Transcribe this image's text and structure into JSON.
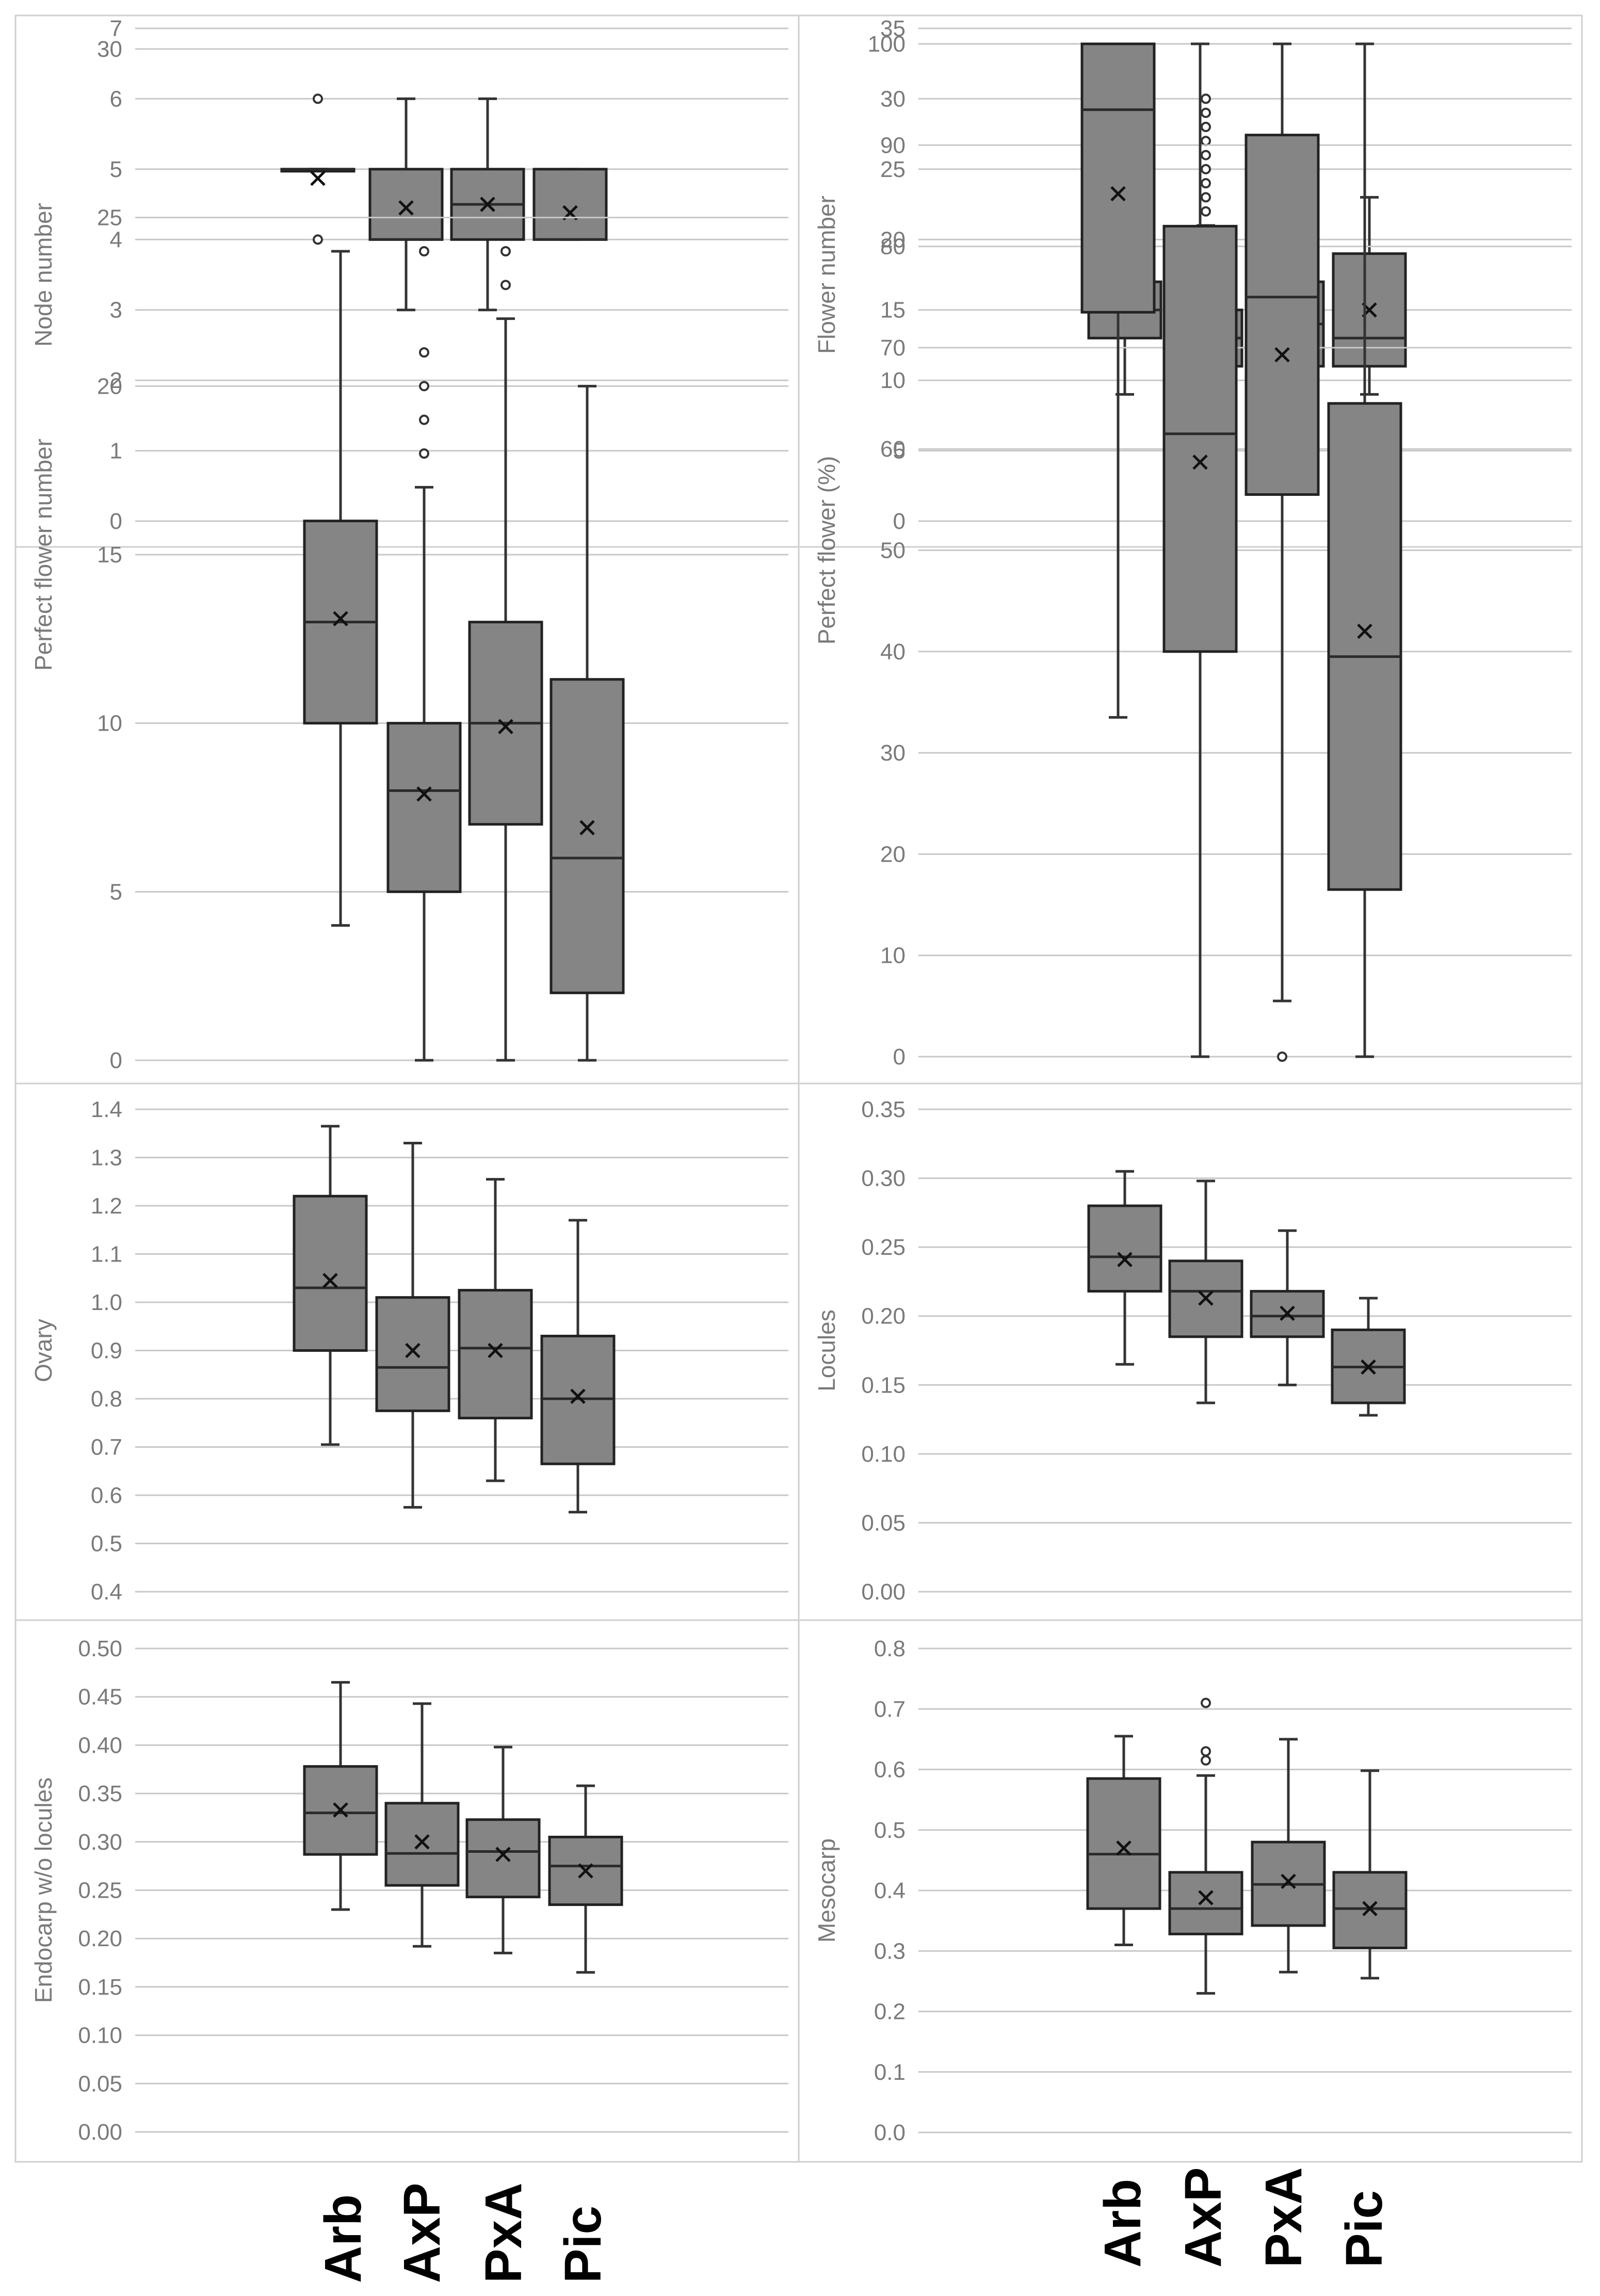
{
  "figure": {
    "categories": [
      "Arb",
      "AxP",
      "PxA",
      "Pic"
    ]
  },
  "chart_data": [
    {
      "type": "box",
      "title": "",
      "xlabel": "",
      "ylabel": "Node number",
      "ylim": [
        0,
        7
      ],
      "yticks": [
        0,
        1,
        2,
        3,
        4,
        5,
        6,
        7
      ],
      "tick_decimals": 0,
      "categories": [
        "Arb",
        "AxP",
        "PxA",
        "Pic"
      ],
      "series": [
        {
          "name": "Arb",
          "min": 5,
          "q1": 5,
          "median": 5,
          "q3": 5,
          "max": 5,
          "mean": 4.87,
          "outliers": [
            4,
            6
          ]
        },
        {
          "name": "AxP",
          "min": 3,
          "q1": 4,
          "median": 4,
          "q3": 5,
          "max": 6,
          "mean": 4.45,
          "outliers": []
        },
        {
          "name": "PxA",
          "min": 3,
          "q1": 4,
          "median": 4.5,
          "q3": 5,
          "max": 6,
          "mean": 4.5,
          "outliers": []
        },
        {
          "name": "Pic",
          "min": 4,
          "q1": 4,
          "median": 4,
          "q3": 5,
          "max": 5,
          "mean": 4.38,
          "outliers": []
        }
      ]
    },
    {
      "type": "box",
      "title": "",
      "xlabel": "",
      "ylabel": "Flower number",
      "ylim": [
        0,
        35
      ],
      "yticks": [
        0,
        5,
        10,
        15,
        20,
        25,
        30,
        35
      ],
      "tick_decimals": 0,
      "categories": [
        "Arb",
        "AxP",
        "PxA",
        "Pic"
      ],
      "series": [
        {
          "name": "Arb",
          "min": 9,
          "q1": 13,
          "median": 15,
          "q3": 17,
          "max": 22,
          "mean": 15.3,
          "outliers": [
            25,
            29
          ]
        },
        {
          "name": "AxP",
          "min": 7,
          "q1": 11,
          "median": 13,
          "q3": 15,
          "max": 21,
          "mean": 13.1,
          "outliers": [
            22,
            23,
            24,
            25,
            26,
            27,
            28,
            29,
            30
          ]
        },
        {
          "name": "PxA",
          "min": 7,
          "q1": 11,
          "median": 14,
          "q3": 17,
          "max": 26,
          "mean": 14.3,
          "outliers": [
            27
          ]
        },
        {
          "name": "Pic",
          "min": 9,
          "q1": 11,
          "median": 13,
          "q3": 19,
          "max": 23,
          "mean": 15.0,
          "outliers": []
        }
      ]
    },
    {
      "type": "box",
      "title": "",
      "xlabel": "",
      "ylabel": "Perfect flower number",
      "ylim": [
        0,
        30
      ],
      "yticks": [
        0,
        5,
        10,
        15,
        20,
        25,
        30
      ],
      "tick_decimals": 0,
      "categories": [
        "Arb",
        "AxP",
        "PxA",
        "Pic"
      ],
      "series": [
        {
          "name": "Arb",
          "min": 4,
          "q1": 10,
          "median": 13,
          "q3": 16,
          "max": 24,
          "mean": 13.1,
          "outliers": []
        },
        {
          "name": "AxP",
          "min": 0,
          "q1": 5,
          "median": 8,
          "q3": 10,
          "max": 17,
          "mean": 7.9,
          "outliers": [
            18,
            19,
            20,
            21,
            24
          ]
        },
        {
          "name": "PxA",
          "min": 0,
          "q1": 7,
          "median": 10,
          "q3": 13,
          "max": 22,
          "mean": 9.9,
          "outliers": [
            23,
            24
          ]
        },
        {
          "name": "Pic",
          "min": 0,
          "q1": 2,
          "median": 6,
          "q3": 11.3,
          "max": 20,
          "mean": 6.9,
          "outliers": []
        }
      ]
    },
    {
      "type": "box",
      "title": "",
      "xlabel": "",
      "ylabel": "Perfect flower (%)",
      "ylim": [
        0,
        100
      ],
      "yticks": [
        0,
        10,
        20,
        30,
        40,
        50,
        60,
        70,
        80,
        90,
        100
      ],
      "tick_decimals": 0,
      "categories": [
        "Arb",
        "AxP",
        "PxA",
        "Pic"
      ],
      "series": [
        {
          "name": "Arb",
          "min": 33.5,
          "q1": 73.5,
          "median": 93.5,
          "q3": 100,
          "max": 100,
          "mean": 85.2,
          "outliers": []
        },
        {
          "name": "AxP",
          "min": 0,
          "q1": 40,
          "median": 61.5,
          "q3": 82,
          "max": 100,
          "mean": 58.7,
          "outliers": []
        },
        {
          "name": "PxA",
          "min": 5.5,
          "q1": 55.5,
          "median": 75,
          "q3": 91,
          "max": 100,
          "mean": 69.3,
          "outliers": [
            0
          ]
        },
        {
          "name": "Pic",
          "min": 0,
          "q1": 16.5,
          "median": 39.5,
          "q3": 64.5,
          "max": 100,
          "mean": 42.0,
          "outliers": []
        }
      ]
    },
    {
      "type": "box",
      "title": "",
      "xlabel": "",
      "ylabel": "Ovary",
      "ylim": [
        0.4,
        1.4
      ],
      "yticks": [
        0.4,
        0.5,
        0.6,
        0.7,
        0.8,
        0.9,
        1.0,
        1.1,
        1.2,
        1.3,
        1.4
      ],
      "tick_decimals": 1,
      "categories": [
        "Arb",
        "AxP",
        "PxA",
        "Pic"
      ],
      "series": [
        {
          "name": "Arb",
          "min": 0.705,
          "q1": 0.9,
          "median": 1.03,
          "q3": 1.22,
          "max": 1.365,
          "mean": 1.045,
          "outliers": []
        },
        {
          "name": "AxP",
          "min": 0.575,
          "q1": 0.775,
          "median": 0.865,
          "q3": 1.01,
          "max": 1.33,
          "mean": 0.9,
          "outliers": []
        },
        {
          "name": "PxA",
          "min": 0.63,
          "q1": 0.76,
          "median": 0.905,
          "q3": 1.025,
          "max": 1.255,
          "mean": 0.9,
          "outliers": []
        },
        {
          "name": "Pic",
          "min": 0.565,
          "q1": 0.665,
          "median": 0.8,
          "q3": 0.93,
          "max": 1.17,
          "mean": 0.805,
          "outliers": []
        }
      ]
    },
    {
      "type": "box",
      "title": "",
      "xlabel": "",
      "ylabel": "Locules",
      "ylim": [
        0,
        0.35
      ],
      "yticks": [
        0,
        0.05,
        0.1,
        0.15,
        0.2,
        0.25,
        0.3,
        0.35
      ],
      "tick_decimals": 2,
      "categories": [
        "Arb",
        "AxP",
        "PxA",
        "Pic"
      ],
      "series": [
        {
          "name": "Arb",
          "min": 0.165,
          "q1": 0.218,
          "median": 0.243,
          "q3": 0.28,
          "max": 0.305,
          "mean": 0.241,
          "outliers": []
        },
        {
          "name": "AxP",
          "min": 0.137,
          "q1": 0.185,
          "median": 0.218,
          "q3": 0.24,
          "max": 0.298,
          "mean": 0.213,
          "outliers": []
        },
        {
          "name": "PxA",
          "min": 0.15,
          "q1": 0.185,
          "median": 0.2,
          "q3": 0.218,
          "max": 0.262,
          "mean": 0.202,
          "outliers": []
        },
        {
          "name": "Pic",
          "min": 0.128,
          "q1": 0.137,
          "median": 0.163,
          "q3": 0.19,
          "max": 0.213,
          "mean": 0.163,
          "outliers": []
        }
      ]
    },
    {
      "type": "box",
      "title": "",
      "xlabel": "",
      "ylabel": "Endocarp w/o locules",
      "ylim": [
        0,
        0.5
      ],
      "yticks": [
        0,
        0.05,
        0.1,
        0.15,
        0.2,
        0.25,
        0.3,
        0.35,
        0.4,
        0.45,
        0.5
      ],
      "tick_decimals": 2,
      "categories": [
        "Arb",
        "AxP",
        "PxA",
        "Pic"
      ],
      "series": [
        {
          "name": "Arb",
          "min": 0.23,
          "q1": 0.287,
          "median": 0.33,
          "q3": 0.378,
          "max": 0.465,
          "mean": 0.333,
          "outliers": []
        },
        {
          "name": "AxP",
          "min": 0.192,
          "q1": 0.255,
          "median": 0.288,
          "q3": 0.34,
          "max": 0.443,
          "mean": 0.3,
          "outliers": []
        },
        {
          "name": "PxA",
          "min": 0.185,
          "q1": 0.243,
          "median": 0.29,
          "q3": 0.323,
          "max": 0.398,
          "mean": 0.287,
          "outliers": []
        },
        {
          "name": "Pic",
          "min": 0.165,
          "q1": 0.235,
          "median": 0.275,
          "q3": 0.305,
          "max": 0.358,
          "mean": 0.27,
          "outliers": []
        }
      ]
    },
    {
      "type": "box",
      "title": "",
      "xlabel": "",
      "ylabel": "Mesocarp",
      "ylim": [
        0,
        0.8
      ],
      "yticks": [
        0,
        0.1,
        0.2,
        0.3,
        0.4,
        0.5,
        0.6,
        0.7,
        0.8
      ],
      "tick_decimals": 1,
      "categories": [
        "Arb",
        "AxP",
        "PxA",
        "Pic"
      ],
      "series": [
        {
          "name": "Arb",
          "min": 0.31,
          "q1": 0.37,
          "median": 0.46,
          "q3": 0.585,
          "max": 0.655,
          "mean": 0.47,
          "outliers": []
        },
        {
          "name": "AxP",
          "min": 0.23,
          "q1": 0.328,
          "median": 0.37,
          "q3": 0.43,
          "max": 0.59,
          "mean": 0.388,
          "outliers": [
            0.615,
            0.63,
            0.71
          ]
        },
        {
          "name": "PxA",
          "min": 0.265,
          "q1": 0.342,
          "median": 0.41,
          "q3": 0.48,
          "max": 0.65,
          "mean": 0.415,
          "outliers": []
        },
        {
          "name": "Pic",
          "min": 0.255,
          "q1": 0.305,
          "median": 0.37,
          "q3": 0.43,
          "max": 0.598,
          "mean": 0.37,
          "outliers": []
        }
      ]
    }
  ]
}
